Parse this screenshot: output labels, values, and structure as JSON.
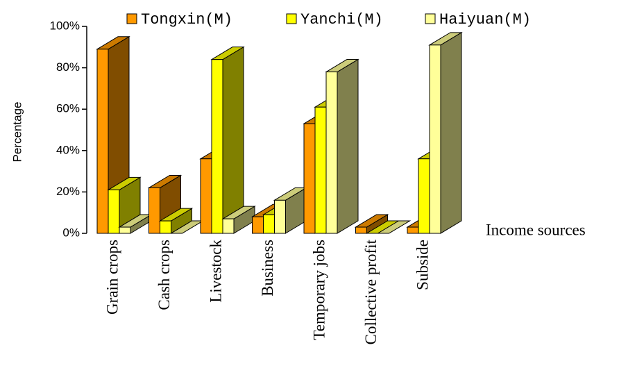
{
  "chart_data": {
    "type": "bar3d",
    "categories": [
      "Grain crops",
      "Cash crops",
      "Livestock",
      "Business",
      "Temporary jobs",
      "Collective profit",
      "Subside"
    ],
    "series": [
      {
        "name": "Tongxin(M)",
        "color": "#ff9900",
        "values": [
          89,
          22,
          36,
          8,
          53,
          3,
          3
        ]
      },
      {
        "name": "Yanchi(M)",
        "color": "#ffff00",
        "values": [
          21,
          6,
          84,
          9,
          61,
          0,
          36
        ]
      },
      {
        "name": "Haiyuan(M)",
        "color": "#ffff99",
        "values": [
          3,
          0,
          7,
          16,
          78,
          0,
          91
        ]
      }
    ],
    "ylim": [
      0,
      100
    ],
    "yticks": [
      {
        "value": 0,
        "label": "0%"
      },
      {
        "value": 20,
        "label": "20%"
      },
      {
        "value": 40,
        "label": "40%"
      },
      {
        "value": 60,
        "label": "60%"
      },
      {
        "value": 80,
        "label": "80%"
      },
      {
        "value": 100,
        "label": "100%"
      }
    ],
    "y_label": "Percentage",
    "x_label": "Income sources"
  }
}
